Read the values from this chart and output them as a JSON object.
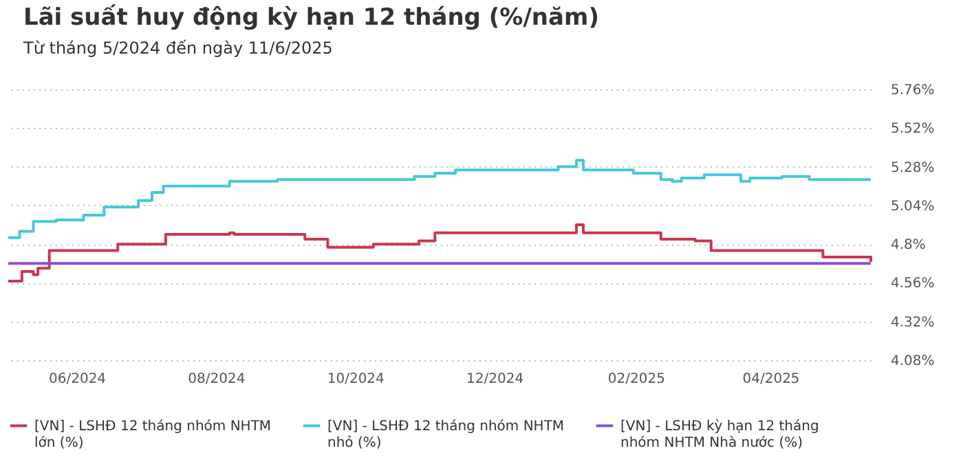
{
  "chart_data": {
    "type": "step",
    "title": "Lãi suất huy động kỳ hạn 12 tháng (%/năm)",
    "subtitle": "Từ tháng 5/2024 đến ngày 11/6/2025",
    "xlim": [
      "2024-05-02",
      "2025-05-15"
    ],
    "xticks": [
      {
        "value": "2024-06-01",
        "label": "06/2024"
      },
      {
        "value": "2024-08-01",
        "label": "08/2024"
      },
      {
        "value": "2024-10-01",
        "label": "10/2024"
      },
      {
        "value": "2024-12-01",
        "label": "12/2024"
      },
      {
        "value": "2025-02-01",
        "label": "02/2025"
      },
      {
        "value": "2025-04-01",
        "label": "04/2025"
      }
    ],
    "ylim": [
      4.08,
      5.76
    ],
    "yticks": [
      {
        "value": 4.08,
        "label": "4.08%"
      },
      {
        "value": 4.32,
        "label": "4.32%"
      },
      {
        "value": 4.56,
        "label": "4.56%"
      },
      {
        "value": 4.8,
        "label": "4.8%"
      },
      {
        "value": 5.04,
        "label": "5.04%"
      },
      {
        "value": 5.28,
        "label": "5.28%"
      },
      {
        "value": 5.52,
        "label": "5.52%"
      },
      {
        "value": 5.76,
        "label": "5.76%"
      }
    ],
    "grid": "y",
    "legend": "bottom",
    "marker": "none",
    "series": [
      {
        "name": "[VN] - LSHĐ 12 tháng nhóm NHTM lớn (%)",
        "color": "#c8384f",
        "x": [
          "2024-05-02",
          "2024-05-08",
          "2024-05-13",
          "2024-05-15",
          "2024-05-20",
          "2024-06-19",
          "2024-07-10",
          "2024-08-07",
          "2024-08-09",
          "2024-09-09",
          "2024-09-19",
          "2024-10-09",
          "2024-10-29",
          "2024-11-05",
          "2024-12-27",
          "2025-01-06",
          "2025-01-09",
          "2025-02-12",
          "2025-02-27",
          "2025-03-06",
          "2025-04-24",
          "2025-05-14",
          "2025-05-15"
        ],
        "values": [
          4.57,
          4.63,
          4.61,
          4.65,
          4.76,
          4.8,
          4.86,
          4.87,
          4.86,
          4.83,
          4.78,
          4.8,
          4.82,
          4.87,
          4.87,
          4.92,
          4.87,
          4.83,
          4.82,
          4.76,
          4.72,
          4.72,
          4.69
        ]
      },
      {
        "name": "[VN] - LSHĐ 12 tháng nhóm NHTM nhỏ (%)",
        "color": "#45c8d8",
        "x": [
          "2024-05-02",
          "2024-05-07",
          "2024-05-13",
          "2024-05-23",
          "2024-06-04",
          "2024-06-13",
          "2024-06-28",
          "2024-07-04",
          "2024-07-09",
          "2024-08-07",
          "2024-08-28",
          "2024-10-27",
          "2024-11-05",
          "2024-11-14",
          "2024-12-29",
          "2025-01-06",
          "2025-01-09",
          "2025-01-31",
          "2025-02-12",
          "2025-02-17",
          "2025-02-21",
          "2025-03-03",
          "2025-03-19",
          "2025-03-23",
          "2025-04-06",
          "2025-04-18",
          "2025-05-15"
        ],
        "values": [
          4.84,
          4.88,
          4.94,
          4.95,
          4.98,
          5.03,
          5.07,
          5.12,
          5.16,
          5.19,
          5.2,
          5.22,
          5.24,
          5.26,
          5.28,
          5.32,
          5.26,
          5.24,
          5.2,
          5.19,
          5.21,
          5.23,
          5.19,
          5.21,
          5.22,
          5.2,
          5.2
        ]
      },
      {
        "name": "[VN] - LSHĐ kỳ hạn 12 tháng nhóm NHTM Nhà nước (%)",
        "color": "#8a4fd8",
        "x": [
          "2024-05-02",
          "2025-05-15"
        ],
        "values": [
          4.68,
          4.68
        ]
      }
    ]
  }
}
